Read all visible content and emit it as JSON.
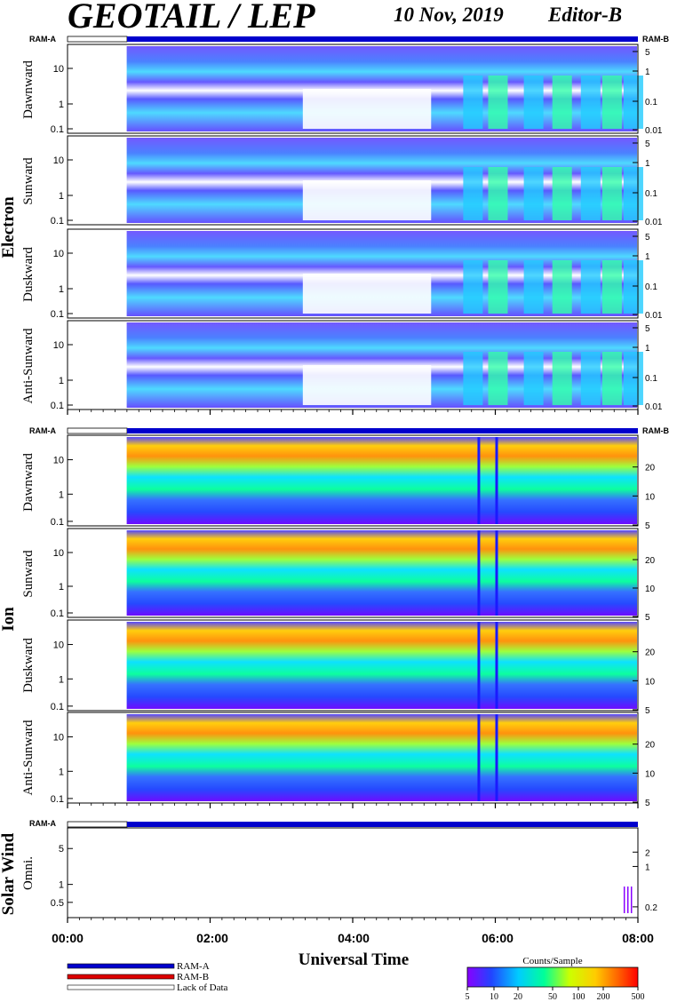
{
  "header": {
    "title": "GEOTAIL / LEP",
    "date": "10 Nov, 2019",
    "editor": "Editor-B"
  },
  "labels": {
    "ram_a": "RAM-A",
    "ram_b": "RAM-B",
    "x_title": "Universal Time"
  },
  "groups": [
    {
      "name": "Electron",
      "panels": [
        "Dawnward",
        "Sunward",
        "Duskward",
        "Anti-Sunward"
      ]
    },
    {
      "name": "Ion",
      "panels": [
        "Dawnward",
        "Sunward",
        "Duskward",
        "Anti-Sunward"
      ]
    },
    {
      "name": "Solar Wind",
      "panels": [
        "Omni."
      ]
    }
  ],
  "legend": {
    "ram_a": "RAM-A",
    "ram_b": "RAM-B",
    "lack": "Lack of Data",
    "colors": {
      "ram_a": "#0000cc",
      "ram_b": "#dd0000"
    }
  },
  "colorbar": {
    "title": "Counts/Sample",
    "ticks": [
      "5",
      "10",
      "20",
      "50",
      "100",
      "200",
      "500"
    ],
    "stops": [
      "#8800ff",
      "#2244ff",
      "#00ccff",
      "#00ff99",
      "#ccff00",
      "#ffcc00",
      "#ff6600",
      "#ff0000"
    ]
  },
  "chart_data": {
    "type": "heatmap",
    "x": {
      "ticks": [
        "00:00",
        "02:00",
        "04:00",
        "06:00",
        "08:00"
      ],
      "range_hours": [
        0,
        8
      ],
      "data_start_hour": 0.83
    },
    "electron": {
      "left_ticks": [
        "10",
        "1",
        "0.1"
      ],
      "right_ticks": [
        "5",
        "1",
        "0.1",
        "0.01"
      ]
    },
    "ion": {
      "left_ticks": [
        "10",
        "1",
        "0.1"
      ],
      "right_ticks": [
        "20",
        "10",
        "5"
      ]
    },
    "solar_wind": {
      "left_ticks": [
        "5",
        "1",
        "0.5"
      ],
      "right_ticks": [
        "2",
        "1",
        "0.2"
      ]
    },
    "color_scale": {
      "label": "Counts/Sample",
      "min": 5,
      "max": 500,
      "scale": "log"
    }
  }
}
